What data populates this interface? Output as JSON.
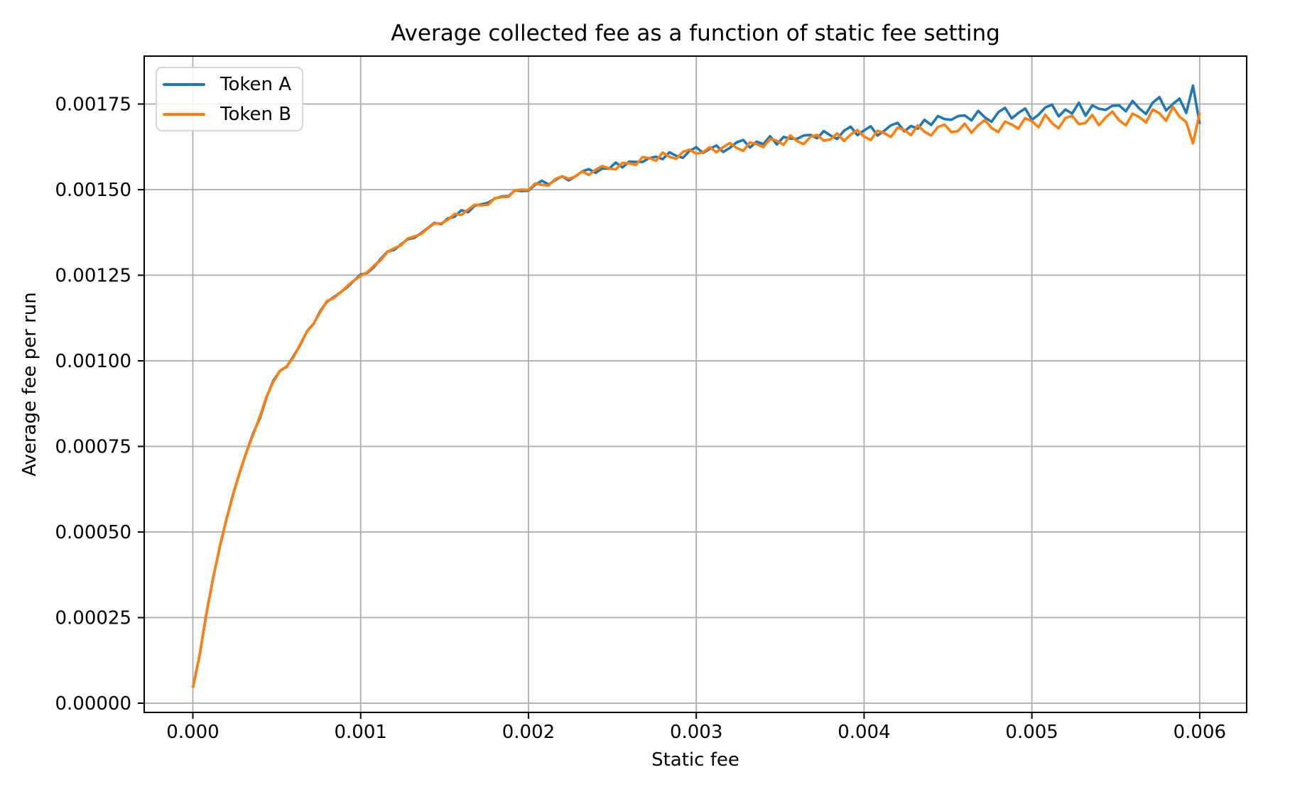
{
  "figure": {
    "title": "Average collected fee as a function of static fee setting",
    "xlabel": "Static fee",
    "ylabel": "Average fee per run"
  },
  "colors": {
    "series_a": "#1f77b4",
    "series_b": "#ff7f0e",
    "grid": "#b0b0b0",
    "spine": "#000000",
    "background": "#ffffff",
    "legend_border": "#d5d5d5"
  },
  "chart_data": {
    "type": "line",
    "title": "Average collected fee as a function of static fee setting",
    "xlabel": "Static fee",
    "ylabel": "Average fee per run",
    "grid": true,
    "legend_position": "upper left",
    "xlim": [
      -0.00029,
      0.00628
    ],
    "ylim": [
      -2.7e-05,
      0.00189
    ],
    "x_ticks": [
      0.0,
      0.001,
      0.002,
      0.003,
      0.004,
      0.005,
      0.006
    ],
    "x_tick_labels": [
      "0.000",
      "0.001",
      "0.002",
      "0.003",
      "0.004",
      "0.005",
      "0.006"
    ],
    "y_ticks": [
      0.0,
      0.00025,
      0.0005,
      0.00075,
      0.001,
      0.00125,
      0.0015,
      0.00175
    ],
    "y_tick_labels": [
      "0.00000",
      "0.00025",
      "0.00050",
      "0.00075",
      "0.00100",
      "0.00125",
      "0.00150",
      "0.00175"
    ],
    "x_start": 0.0,
    "x_step": 4e-05,
    "n_points": 151,
    "y_unit": 1e-05,
    "series": [
      {
        "name": "Token A",
        "color": "#1f77b4",
        "y_1e5": [
          4.5,
          13.9,
          26.0,
          36.4,
          45.5,
          53.7,
          61.1,
          67.4,
          73.4,
          78.9,
          83.3,
          89.4,
          94.3,
          97.1,
          98.3,
          101.4,
          104.6,
          108.6,
          110.8,
          114.6,
          117.3,
          118.6,
          120.0,
          121.5,
          123.4,
          125.2,
          125.7,
          127.4,
          129.8,
          131.9,
          132.4,
          134.0,
          135.5,
          135.9,
          137.3,
          138.8,
          140.3,
          139.9,
          141.6,
          142.1,
          144.0,
          143.4,
          145.3,
          145.7,
          146.2,
          147.4,
          148.0,
          148.1,
          149.8,
          149.6,
          149.7,
          151.4,
          152.6,
          151.5,
          152.8,
          153.9,
          152.7,
          153.9,
          155.3,
          156.0,
          154.9,
          156.2,
          156.1,
          157.9,
          156.5,
          158.2,
          158.1,
          158.1,
          159.2,
          159.6,
          158.9,
          160.9,
          159.9,
          159.3,
          161.3,
          162.4,
          160.7,
          161.9,
          162.9,
          161.0,
          162.2,
          163.8,
          164.5,
          162.3,
          164.0,
          163.3,
          165.6,
          163.2,
          165.4,
          164.9,
          164.8,
          165.8,
          166.0,
          165.0,
          167.1,
          165.8,
          164.8,
          167.2,
          168.4,
          165.9,
          167.3,
          168.5,
          165.8,
          167.2,
          168.8,
          169.5,
          167.0,
          168.6,
          167.8,
          170.4,
          168.9,
          171.5,
          170.6,
          170.4,
          171.5,
          171.7,
          170.2,
          173.0,
          171.1,
          169.8,
          172.6,
          173.9,
          170.8,
          172.4,
          173.7,
          170.4,
          171.9,
          174.0,
          174.8,
          171.4,
          173.4,
          172.2,
          175.4,
          171.6,
          174.6,
          173.6,
          173.3,
          174.5,
          174.6,
          172.9,
          175.9,
          173.7,
          172.1,
          175.4,
          177.0,
          173.1,
          175.0,
          176.6,
          172.4,
          180.4,
          169.2
        ]
      },
      {
        "name": "Token B",
        "color": "#ff7f0e",
        "y_1e5": [
          4.5,
          14.0,
          25.8,
          36.4,
          45.7,
          53.7,
          60.9,
          67.6,
          73.4,
          78.5,
          83.8,
          89.6,
          93.9,
          97.1,
          98.4,
          101.1,
          104.8,
          108.5,
          110.9,
          114.3,
          117.5,
          118.3,
          120.0,
          121.8,
          123.5,
          124.8,
          125.9,
          127.8,
          129.4,
          131.8,
          132.9,
          133.7,
          135.7,
          136.3,
          137.0,
          138.7,
          140.1,
          140.1,
          141.2,
          142.9,
          142.6,
          144.2,
          145.6,
          145.4,
          145.6,
          147.5,
          147.8,
          147.9,
          149.8,
          150.0,
          149.9,
          151.8,
          151.4,
          151.2,
          153.1,
          153.9,
          153.2,
          153.8,
          155.3,
          154.3,
          155.8,
          156.9,
          156.2,
          155.9,
          157.8,
          157.7,
          157.2,
          159.5,
          159.2,
          158.4,
          160.8,
          159.6,
          159.0,
          161.0,
          161.7,
          160.5,
          160.9,
          162.4,
          160.9,
          162.4,
          163.6,
          162.2,
          161.3,
          163.8,
          163.3,
          162.4,
          164.8,
          164.3,
          163.1,
          165.8,
          164.2,
          163.3,
          165.4,
          166.0,
          164.3,
          164.7,
          166.4,
          164.2,
          166.1,
          167.4,
          165.5,
          164.5,
          167.2,
          166.5,
          165.4,
          168.1,
          167.4,
          165.9,
          168.8,
          166.9,
          165.8,
          168.3,
          169.0,
          166.8,
          167.1,
          169.3,
          166.6,
          168.8,
          170.3,
          168.0,
          166.8,
          169.9,
          169.0,
          167.8,
          170.9,
          170.0,
          168.2,
          171.9,
          169.4,
          167.9,
          170.9,
          171.6,
          169.1,
          169.5,
          171.8,
          168.8,
          171.1,
          172.8,
          170.2,
          168.8,
          172.2,
          171.2,
          169.6,
          173.4,
          172.3,
          170.1,
          174.2,
          171.3,
          169.7,
          163.5,
          172.5
        ]
      }
    ]
  }
}
